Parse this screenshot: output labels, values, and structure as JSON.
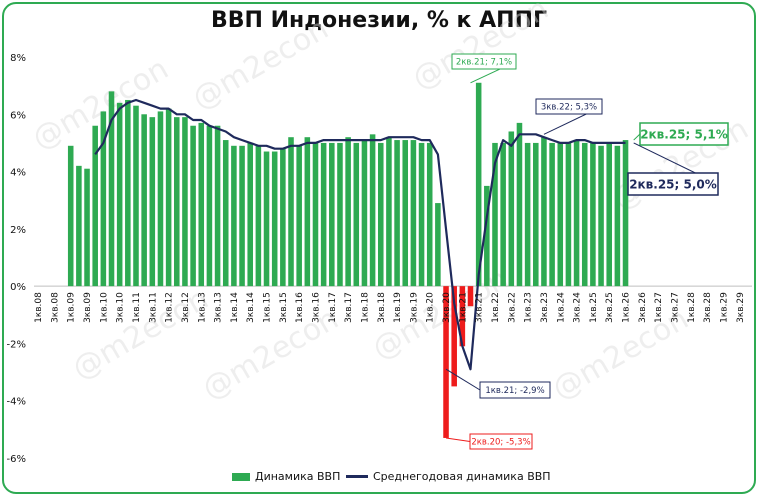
{
  "title": "ВВП Индонезии, % к АППГ",
  "watermark": "@m2econ",
  "colors": {
    "bar": "#2eaa52",
    "bar_negative": "#ee1c1c",
    "line": "#1f2a5c",
    "frame": "#2eaa52",
    "axis": "#bfbfbf",
    "callout_green": "#2eaa52",
    "callout_navy": "#1f2a5c",
    "callout_red": "#ee1c1c"
  },
  "legend": {
    "bar_label": "Динамика ВВП",
    "line_label": "Среднегодовая динамика ВВП",
    "placement": "bottom"
  },
  "chart_data": {
    "type": "bar",
    "title": "ВВП Индонезии, % к АППГ",
    "ylim": [
      -6,
      8
    ],
    "y_ticks": [
      -6,
      -4,
      -2,
      0,
      2,
      4,
      6,
      8
    ],
    "y_tick_format": "percent",
    "grid": false,
    "x_tick_labels": [
      "1кв.08",
      "3кв.08",
      "1кв.09",
      "3кв.09",
      "1кв.10",
      "3кв.10",
      "1кв.11",
      "3кв.11",
      "1кв.12",
      "3кв.12",
      "1кв.13",
      "3кв.13",
      "1кв.14",
      "3кв.14",
      "1кв.15",
      "3кв.15",
      "1кв.16",
      "3кв.16",
      "1кв.17",
      "3кв.17",
      "1кв.18",
      "3кв.18",
      "1кв.19",
      "3кв.19",
      "1кв.20",
      "3кв.20",
      "1кв.21",
      "3кв.21",
      "1кв.22",
      "3кв.22",
      "1кв.23",
      "3кв.23",
      "1кв.24",
      "3кв.24",
      "1кв.25",
      "3кв.25",
      "1кв.26",
      "3кв.26",
      "1кв.27",
      "3кв.27",
      "1кв.28",
      "3кв.28",
      "1кв.29",
      "3кв.29"
    ],
    "series": [
      {
        "name": "Динамика ВВП",
        "type": "bar",
        "start_quarter_index": 4,
        "values": [
          4.9,
          4.2,
          4.1,
          5.6,
          6.1,
          6.8,
          6.4,
          6.5,
          6.3,
          6.0,
          5.9,
          6.1,
          6.2,
          5.9,
          5.9,
          5.6,
          5.7,
          5.6,
          5.6,
          5.1,
          4.9,
          4.9,
          5.0,
          4.9,
          4.7,
          4.7,
          4.8,
          5.2,
          4.9,
          5.2,
          5.0,
          5.0,
          5.0,
          5.0,
          5.2,
          5.0,
          5.1,
          5.3,
          5.0,
          5.2,
          5.1,
          5.1,
          5.1,
          5.0,
          5.0,
          2.9,
          -5.3,
          -3.5,
          -2.1,
          -0.7,
          7.1,
          3.5,
          5.0,
          5.0,
          5.4,
          5.7,
          5.0,
          5.0,
          5.2,
          5.0,
          5.0,
          5.0,
          5.1,
          5.0,
          5.0,
          4.9,
          5.0,
          4.9,
          5.1
        ]
      },
      {
        "name": "Среднегодовая динамика ВВП",
        "type": "line",
        "start_quarter_index": 7,
        "values": [
          4.6,
          5.0,
          5.8,
          6.2,
          6.4,
          6.5,
          6.4,
          6.3,
          6.2,
          6.2,
          6.0,
          6.0,
          5.8,
          5.8,
          5.6,
          5.5,
          5.4,
          5.2,
          5.1,
          5.0,
          4.9,
          4.9,
          4.8,
          4.8,
          4.9,
          4.9,
          5.0,
          5.0,
          5.1,
          5.1,
          5.1,
          5.1,
          5.1,
          5.1,
          5.1,
          5.1,
          5.2,
          5.2,
          5.2,
          5.2,
          5.1,
          5.1,
          4.6,
          2.0,
          -0.6,
          -2.1,
          -2.9,
          0.4,
          2.4,
          4.3,
          5.1,
          4.9,
          5.3,
          5.3,
          5.3,
          5.2,
          5.1,
          5.0,
          5.0,
          5.1,
          5.1,
          5.0,
          5.0,
          5.0,
          5.0,
          5.0
        ]
      }
    ],
    "callouts": [
      {
        "label": "2кв.21; 7,1%",
        "series": "Динамика ВВП",
        "value": 7.1,
        "style": "green"
      },
      {
        "label": "3кв.22; 5,3%",
        "series": "Среднегодовая динамика ВВП",
        "value": 5.3,
        "style": "navy"
      },
      {
        "label": "2кв.25; 5,1%",
        "series": "Динамика ВВП",
        "value": 5.1,
        "style": "green-large"
      },
      {
        "label": "2кв.25; 5,0%",
        "series": "Среднегодовая динамика ВВП",
        "value": 5.0,
        "style": "navy-large"
      },
      {
        "label": "1кв.21; -2,9%",
        "series": "Среднегодовая динамика ВВП",
        "value": -2.9,
        "style": "navy"
      },
      {
        "label": "2кв.20; -5,3%",
        "series": "Динамика ВВП",
        "value": -5.3,
        "style": "red"
      }
    ]
  }
}
